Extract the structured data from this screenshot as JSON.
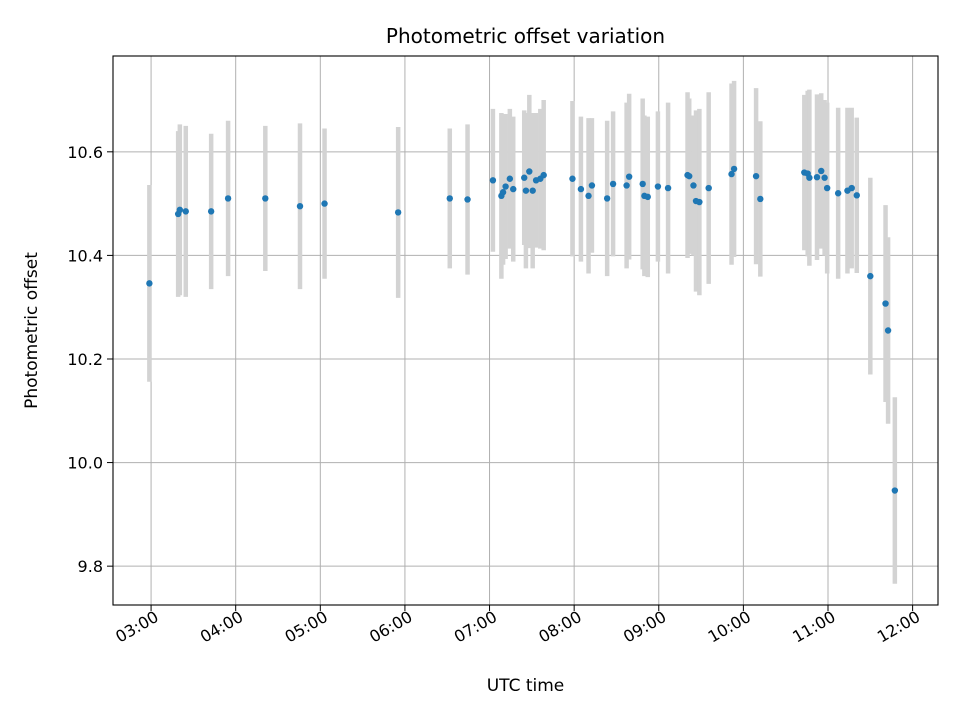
{
  "chart_data": {
    "type": "scatter",
    "title": "Photometric offset variation",
    "xlabel": "UTC time",
    "ylabel": "Photometric offset",
    "x_unit": "hours UTC",
    "xlim": [
      2.55,
      12.3
    ],
    "ylim": [
      9.725,
      10.785
    ],
    "x_ticks": [
      3,
      4,
      5,
      6,
      7,
      8,
      9,
      10,
      11,
      12
    ],
    "x_tick_labels": [
      "03:00",
      "04:00",
      "05:00",
      "06:00",
      "07:00",
      "08:00",
      "09:00",
      "10:00",
      "11:00",
      "12:00"
    ],
    "y_ticks": [
      9.8,
      10.0,
      10.2,
      10.4,
      10.6
    ],
    "y_tick_labels": [
      "9.8",
      "10.0",
      "10.2",
      "10.4",
      "10.6"
    ],
    "grid": true,
    "legend": "none",
    "colors": {
      "marker": "#1f77b4",
      "errorbar": "#d3d3d3",
      "grid": "#b0b0b0"
    },
    "series": [
      {
        "x": [
          2.98,
          3.32,
          3.34,
          3.41,
          3.71,
          3.91,
          4.35,
          4.76,
          5.05,
          5.92,
          6.53,
          6.74,
          7.04,
          7.14,
          7.16,
          7.19,
          7.24,
          7.28,
          7.41,
          7.43,
          7.47,
          7.51,
          7.55,
          7.6,
          7.64,
          7.98,
          8.08,
          8.17,
          8.21,
          8.39,
          8.46,
          8.62,
          8.65,
          8.81,
          8.83,
          8.87,
          8.99,
          9.11,
          9.34,
          9.36,
          9.41,
          9.44,
          9.48,
          9.59,
          9.86,
          9.89,
          10.15,
          10.2,
          10.72,
          10.76,
          10.78,
          10.87,
          10.92,
          10.96,
          10.99,
          11.12,
          11.23,
          11.28,
          11.34,
          11.5,
          11.68,
          11.71,
          11.79
        ],
        "y": [
          10.346,
          10.48,
          10.488,
          10.485,
          10.485,
          10.51,
          10.51,
          10.495,
          10.5,
          10.483,
          10.51,
          10.508,
          10.545,
          10.515,
          10.522,
          10.533,
          10.548,
          10.528,
          10.55,
          10.525,
          10.562,
          10.525,
          10.545,
          10.548,
          10.555,
          10.548,
          10.528,
          10.515,
          10.535,
          10.51,
          10.538,
          10.535,
          10.552,
          10.538,
          10.515,
          10.513,
          10.533,
          10.53,
          10.555,
          10.553,
          10.535,
          10.505,
          10.503,
          10.53,
          10.557,
          10.567,
          10.553,
          10.509,
          10.56,
          10.558,
          10.55,
          10.551,
          10.563,
          10.55,
          10.53,
          10.52,
          10.525,
          10.53,
          10.516,
          10.36,
          10.307,
          10.255,
          9.946
        ],
        "yerr": [
          0.19,
          0.16,
          0.165,
          0.165,
          0.15,
          0.15,
          0.14,
          0.16,
          0.145,
          0.165,
          0.135,
          0.145,
          0.138,
          0.16,
          0.14,
          0.14,
          0.135,
          0.14,
          0.13,
          0.15,
          0.148,
          0.15,
          0.13,
          0.135,
          0.145,
          0.15,
          0.14,
          0.15,
          0.13,
          0.15,
          0.14,
          0.16,
          0.16,
          0.165,
          0.155,
          0.155,
          0.145,
          0.165,
          0.16,
          0.15,
          0.135,
          0.175,
          0.18,
          0.185,
          0.175,
          0.17,
          0.17,
          0.15,
          0.15,
          0.16,
          0.17,
          0.16,
          0.15,
          0.15,
          0.165,
          0.165,
          0.16,
          0.155,
          0.15,
          0.19,
          0.19,
          0.18,
          0.18
        ]
      }
    ]
  }
}
